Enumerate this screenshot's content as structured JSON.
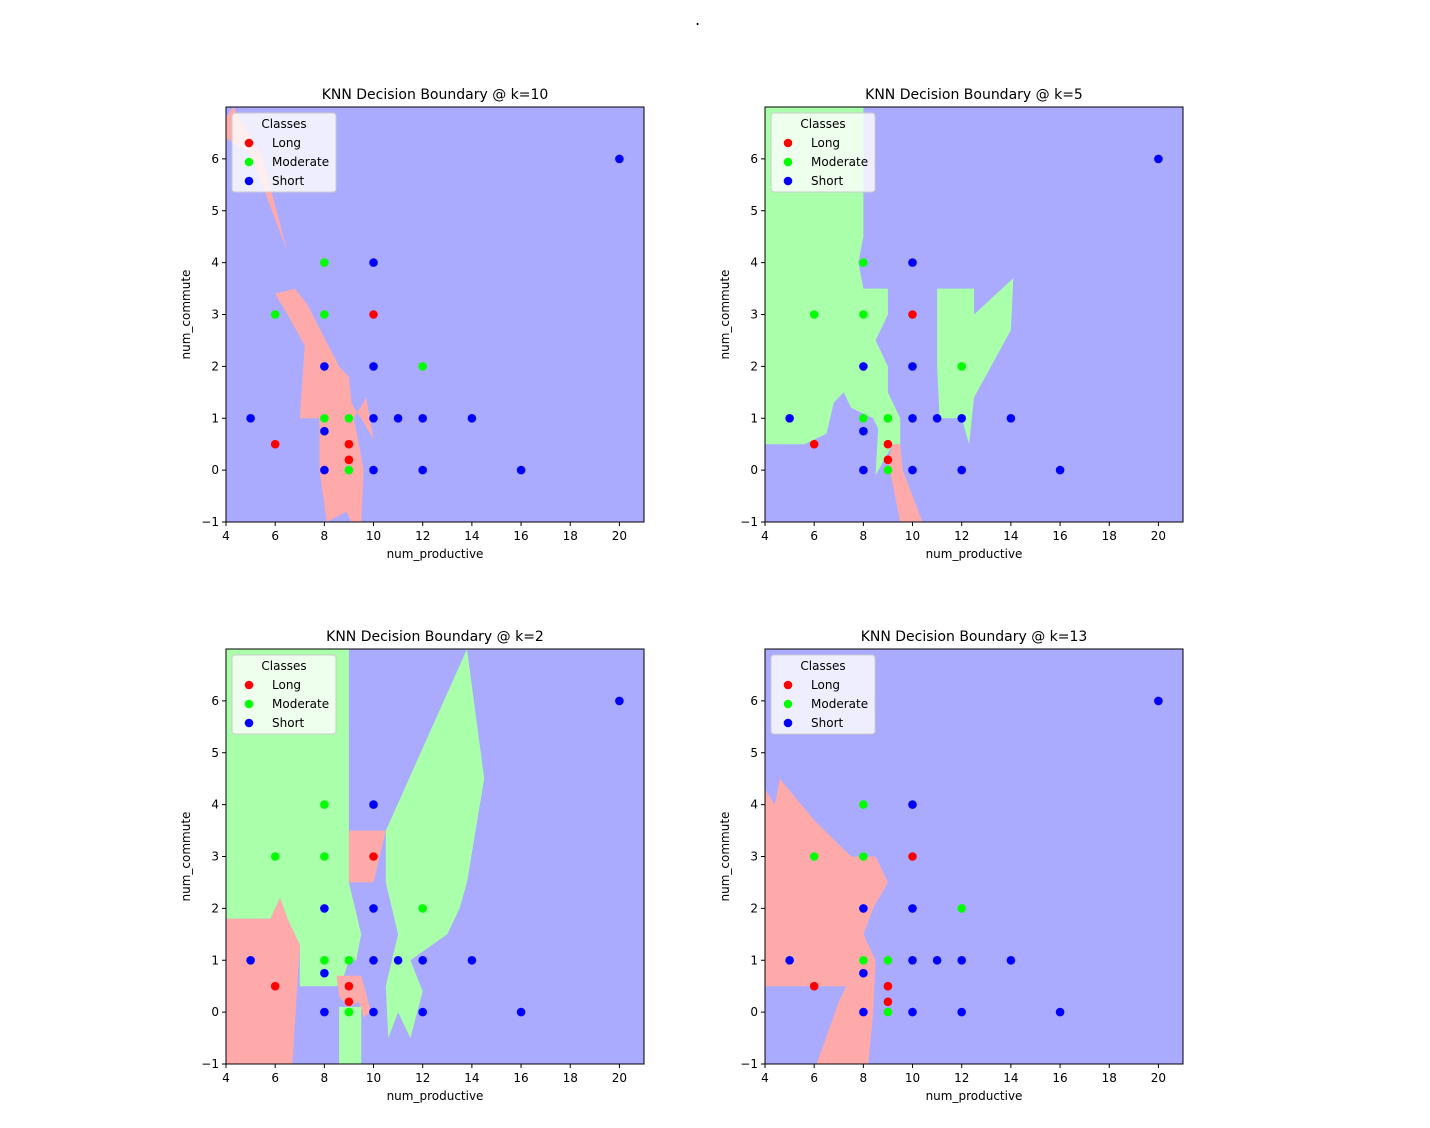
{
  "figure": {
    "stray_mark": "."
  },
  "colors": {
    "Long": "#ff0000",
    "Moderate": "#00ff00",
    "Short": "#0000ff",
    "region_Long": "#ffaaaa",
    "region_Moderate": "#aaffaa",
    "region_Short": "#aaaaff"
  },
  "points": [
    {
      "x": 5,
      "y": 1,
      "class": "Short"
    },
    {
      "x": 6,
      "y": 0.5,
      "class": "Long"
    },
    {
      "x": 6,
      "y": 3,
      "class": "Moderate"
    },
    {
      "x": 8,
      "y": 4,
      "class": "Moderate"
    },
    {
      "x": 8,
      "y": 3,
      "class": "Moderate"
    },
    {
      "x": 8,
      "y": 2,
      "class": "Short"
    },
    {
      "x": 8,
      "y": 1,
      "class": "Moderate"
    },
    {
      "x": 8,
      "y": 0.75,
      "class": "Short"
    },
    {
      "x": 8,
      "y": 0,
      "class": "Short"
    },
    {
      "x": 9,
      "y": 1,
      "class": "Moderate"
    },
    {
      "x": 9,
      "y": 0.5,
      "class": "Long"
    },
    {
      "x": 9,
      "y": 0.2,
      "class": "Long"
    },
    {
      "x": 9,
      "y": 0,
      "class": "Moderate"
    },
    {
      "x": 10,
      "y": 4,
      "class": "Short"
    },
    {
      "x": 10,
      "y": 3,
      "class": "Long"
    },
    {
      "x": 10,
      "y": 2,
      "class": "Short"
    },
    {
      "x": 10,
      "y": 1,
      "class": "Short"
    },
    {
      "x": 10,
      "y": 0,
      "class": "Short"
    },
    {
      "x": 11,
      "y": 1,
      "class": "Short"
    },
    {
      "x": 12,
      "y": 2,
      "class": "Moderate"
    },
    {
      "x": 12,
      "y": 1,
      "class": "Short"
    },
    {
      "x": 12,
      "y": 0,
      "class": "Short"
    },
    {
      "x": 14,
      "y": 1,
      "class": "Short"
    },
    {
      "x": 16,
      "y": 0,
      "class": "Short"
    },
    {
      "x": 20,
      "y": 6,
      "class": "Short"
    }
  ],
  "chart_data": [
    {
      "type": "scatter",
      "title": "KNN Decision Boundary @ k=10",
      "xlabel": "num_productive",
      "ylabel": "num_commute",
      "xlim": [
        4,
        21
      ],
      "ylim": [
        -1,
        7
      ],
      "xticks": [
        4,
        6,
        8,
        10,
        12,
        14,
        16,
        18,
        20
      ],
      "yticks": [
        -1,
        0,
        1,
        2,
        3,
        4,
        5,
        6
      ],
      "legend": {
        "title": "Classes",
        "placement": "upper-left",
        "entries": [
          "Long",
          "Moderate",
          "Short"
        ]
      },
      "background_class": "Short",
      "regions": [
        {
          "class": "Long",
          "polygon": [
            [
              4,
              6.8
            ],
            [
              4.3,
              7
            ],
            [
              5.5,
              6
            ],
            [
              6.5,
              4.2
            ],
            [
              5,
              6.1
            ],
            [
              4,
              6.4
            ]
          ]
        },
        {
          "class": "Long",
          "polygon": [
            [
              5,
              4
            ],
            [
              6,
              3.4
            ],
            [
              6.8,
              3.5
            ],
            [
              7.3,
              3.2
            ],
            [
              8.6,
              2
            ],
            [
              9,
              1.8
            ],
            [
              9.1,
              1.3
            ],
            [
              10,
              0.6
            ],
            [
              9.7,
              1.4
            ],
            [
              9.2,
              1
            ],
            [
              9.6,
              0
            ],
            [
              9.5,
              -1
            ],
            [
              9.1,
              -1
            ],
            [
              8.9,
              -0.8
            ],
            [
              8.1,
              -1
            ],
            [
              7.8,
              0
            ],
            [
              7.8,
              1
            ],
            [
              7,
              1
            ],
            [
              7.2,
              2.4
            ],
            [
              6.5,
              3
            ],
            [
              6,
              3.4
            ]
          ]
        }
      ]
    },
    {
      "type": "scatter",
      "title": "KNN Decision Boundary @ k=5",
      "xlabel": "num_productive",
      "ylabel": "num_commute",
      "xlim": [
        4,
        21
      ],
      "ylim": [
        -1,
        7
      ],
      "xticks": [
        4,
        6,
        8,
        10,
        12,
        14,
        16,
        18,
        20
      ],
      "yticks": [
        -1,
        0,
        1,
        2,
        3,
        4,
        5,
        6
      ],
      "legend": {
        "title": "Classes",
        "placement": "upper-left",
        "entries": [
          "Long",
          "Moderate",
          "Short"
        ]
      },
      "background_class": "Short",
      "regions": [
        {
          "class": "Moderate",
          "polygon": [
            [
              4,
              7
            ],
            [
              8,
              7
            ],
            [
              8,
              4.5
            ],
            [
              7.8,
              4
            ],
            [
              8,
              3.5
            ],
            [
              9,
              3.5
            ],
            [
              9,
              3
            ],
            [
              8.5,
              2.5
            ],
            [
              9,
              2
            ],
            [
              9,
              1.5
            ],
            [
              9.5,
              1
            ],
            [
              9.5,
              0.5
            ],
            [
              9.2,
              0.5
            ],
            [
              8.5,
              -0.1
            ],
            [
              8.6,
              0.8
            ],
            [
              8.4,
              1
            ],
            [
              7.5,
              1.2
            ],
            [
              7.2,
              1.5
            ],
            [
              6.8,
              1.3
            ],
            [
              6.5,
              0.7
            ],
            [
              5.6,
              0.5
            ],
            [
              4,
              0.5
            ]
          ]
        },
        {
          "class": "Moderate",
          "polygon": [
            [
              11,
              3.5
            ],
            [
              12.5,
              3.5
            ],
            [
              12.5,
              3
            ],
            [
              14.1,
              3.7
            ],
            [
              14,
              2.7
            ],
            [
              12.5,
              1.4
            ],
            [
              12.3,
              0.5
            ],
            [
              12,
              1
            ],
            [
              11.1,
              1
            ],
            [
              11,
              2
            ],
            [
              11,
              2.5
            ],
            [
              11,
              3
            ]
          ]
        },
        {
          "class": "Long",
          "polygon": [
            [
              9.2,
              0.5
            ],
            [
              9.5,
              0.5
            ],
            [
              9.6,
              0
            ],
            [
              10.4,
              -1
            ],
            [
              9.5,
              -1
            ],
            [
              9,
              0.2
            ]
          ]
        }
      ]
    },
    {
      "type": "scatter",
      "title": "KNN Decision Boundary @ k=2",
      "xlabel": "num_productive",
      "ylabel": "num_commute",
      "xlim": [
        4,
        21
      ],
      "ylim": [
        -1,
        7
      ],
      "xticks": [
        4,
        6,
        8,
        10,
        12,
        14,
        16,
        18,
        20
      ],
      "yticks": [
        -1,
        0,
        1,
        2,
        3,
        4,
        5,
        6
      ],
      "legend": {
        "title": "Classes",
        "placement": "upper-left",
        "entries": [
          "Long",
          "Moderate",
          "Short"
        ]
      },
      "background_class": "Short",
      "regions": [
        {
          "class": "Moderate",
          "polygon": [
            [
              4,
              7
            ],
            [
              9,
              7
            ],
            [
              9,
              2.5
            ],
            [
              9.5,
              1.5
            ],
            [
              9.3,
              1
            ],
            [
              9,
              1
            ],
            [
              8.8,
              0.7
            ],
            [
              8.5,
              0.5
            ],
            [
              7,
              0.5
            ],
            [
              7,
              1.3
            ],
            [
              6.5,
              1.8
            ],
            [
              6.2,
              2.2
            ],
            [
              5.8,
              1.8
            ],
            [
              4,
              1.8
            ]
          ]
        },
        {
          "class": "Long",
          "polygon": [
            [
              9,
              3.5
            ],
            [
              10.5,
              3.5
            ],
            [
              10,
              2.5
            ],
            [
              9,
              2.5
            ]
          ]
        },
        {
          "class": "Long",
          "polygon": [
            [
              4,
              1.8
            ],
            [
              5.8,
              1.8
            ],
            [
              6.2,
              2.2
            ],
            [
              6.5,
              1.8
            ],
            [
              7,
              1.3
            ],
            [
              6.7,
              -1
            ],
            [
              4,
              -1
            ]
          ]
        },
        {
          "class": "Long",
          "polygon": [
            [
              8.5,
              0.7
            ],
            [
              9.5,
              0.7
            ],
            [
              9.9,
              0
            ],
            [
              9.6,
              -0.1
            ],
            [
              9.4,
              0.2
            ],
            [
              9,
              0.1
            ],
            [
              8.6,
              0.3
            ]
          ]
        },
        {
          "class": "Moderate",
          "polygon": [
            [
              8.6,
              0.1
            ],
            [
              9.5,
              0.1
            ],
            [
              9.5,
              -1
            ],
            [
              8.6,
              -1
            ]
          ]
        },
        {
          "class": "Moderate",
          "polygon": [
            [
              10.5,
              3.5
            ],
            [
              13.8,
              7
            ],
            [
              14.5,
              4.5
            ],
            [
              13.8,
              2.5
            ],
            [
              13.5,
              2
            ],
            [
              13,
              1.5
            ],
            [
              11.5,
              1
            ],
            [
              12,
              0.4
            ],
            [
              11.5,
              -0.5
            ],
            [
              11,
              0
            ],
            [
              10.6,
              -0.5
            ],
            [
              10.5,
              0.5
            ],
            [
              11,
              1.5
            ],
            [
              10.5,
              2.5
            ]
          ]
        }
      ]
    },
    {
      "type": "scatter",
      "title": "KNN Decision Boundary @ k=13",
      "xlabel": "num_productive",
      "ylabel": "num_commute",
      "xlim": [
        4,
        21
      ],
      "ylim": [
        -1,
        7
      ],
      "xticks": [
        4,
        6,
        8,
        10,
        12,
        14,
        16,
        18,
        20
      ],
      "yticks": [
        -1,
        0,
        1,
        2,
        3,
        4,
        5,
        6
      ],
      "legend": {
        "title": "Classes",
        "placement": "upper-left",
        "entries": [
          "Long",
          "Moderate",
          "Short"
        ]
      },
      "background_class": "Short",
      "regions": [
        {
          "class": "Long",
          "polygon": [
            [
              4,
              4.3
            ],
            [
              4.4,
              4
            ],
            [
              4.6,
              4.5
            ],
            [
              6,
              3.7
            ],
            [
              7.5,
              3
            ],
            [
              8.5,
              3
            ],
            [
              9,
              2.5
            ],
            [
              8.4,
              2
            ],
            [
              8,
              1.5
            ],
            [
              8.5,
              1
            ],
            [
              8.4,
              0
            ],
            [
              8.2,
              -1
            ],
            [
              6.1,
              -1
            ],
            [
              7,
              0.2
            ],
            [
              7.3,
              0.5
            ],
            [
              4,
              0.5
            ]
          ]
        }
      ]
    }
  ]
}
